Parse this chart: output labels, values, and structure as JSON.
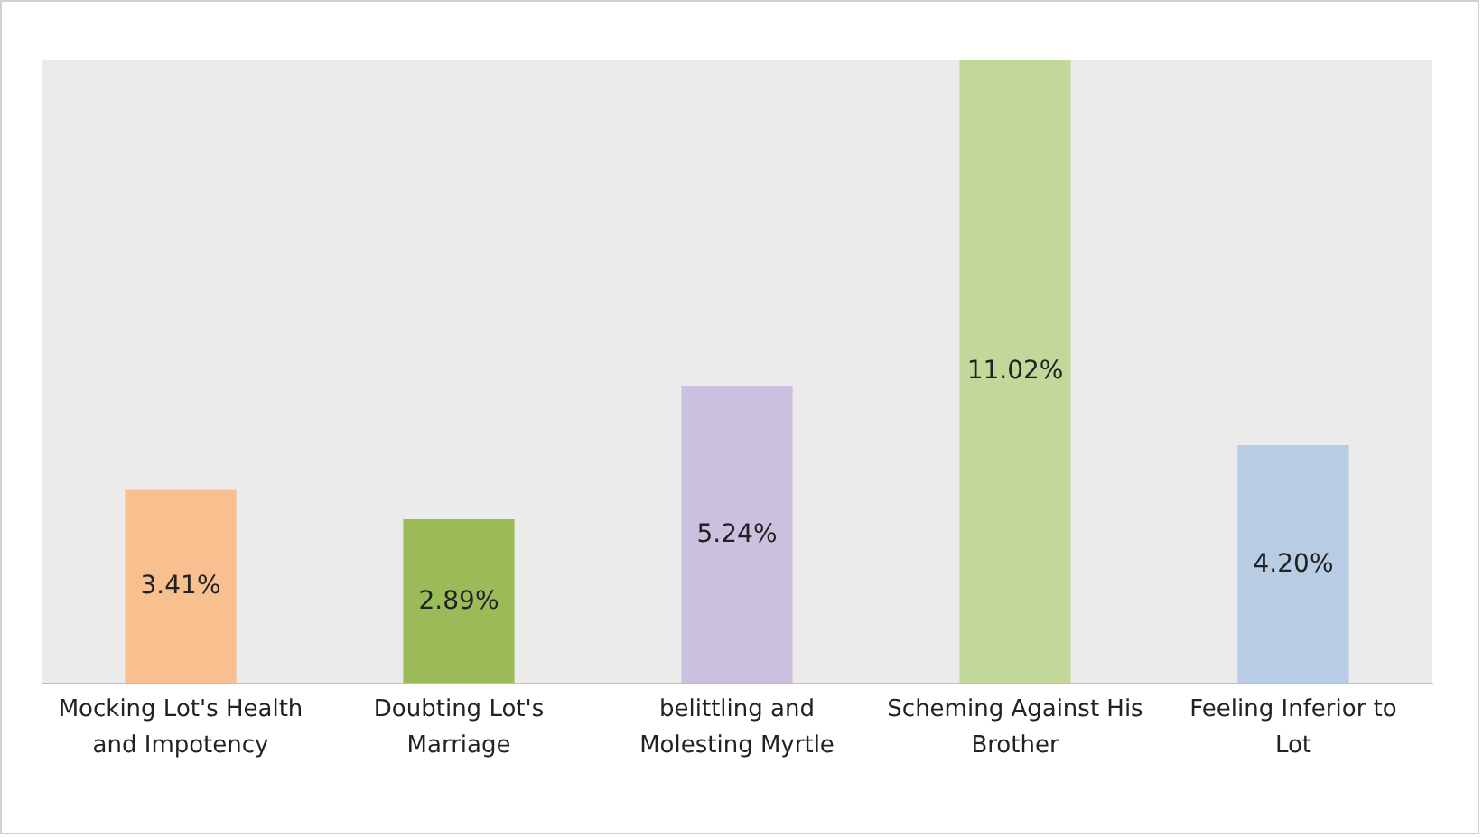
{
  "chart_data": {
    "type": "bar",
    "categories": [
      "Mocking Lot's Health and Impotency",
      "Doubting Lot's Marriage",
      "belittling and Molesting Myrtle",
      "Scheming Against His Brother",
      "Feeling Inferior to Lot"
    ],
    "values": [
      3.41,
      2.89,
      5.24,
      11.02,
      4.2
    ],
    "colors": [
      "#f9c08f",
      "#9bbb59",
      "#cbc0de",
      "#c4d79b",
      "#b8cce4"
    ],
    "value_labels": [
      "3.41%",
      "2.89%",
      "5.24%",
      "11.02%",
      "4.20%"
    ],
    "grid": false
  }
}
